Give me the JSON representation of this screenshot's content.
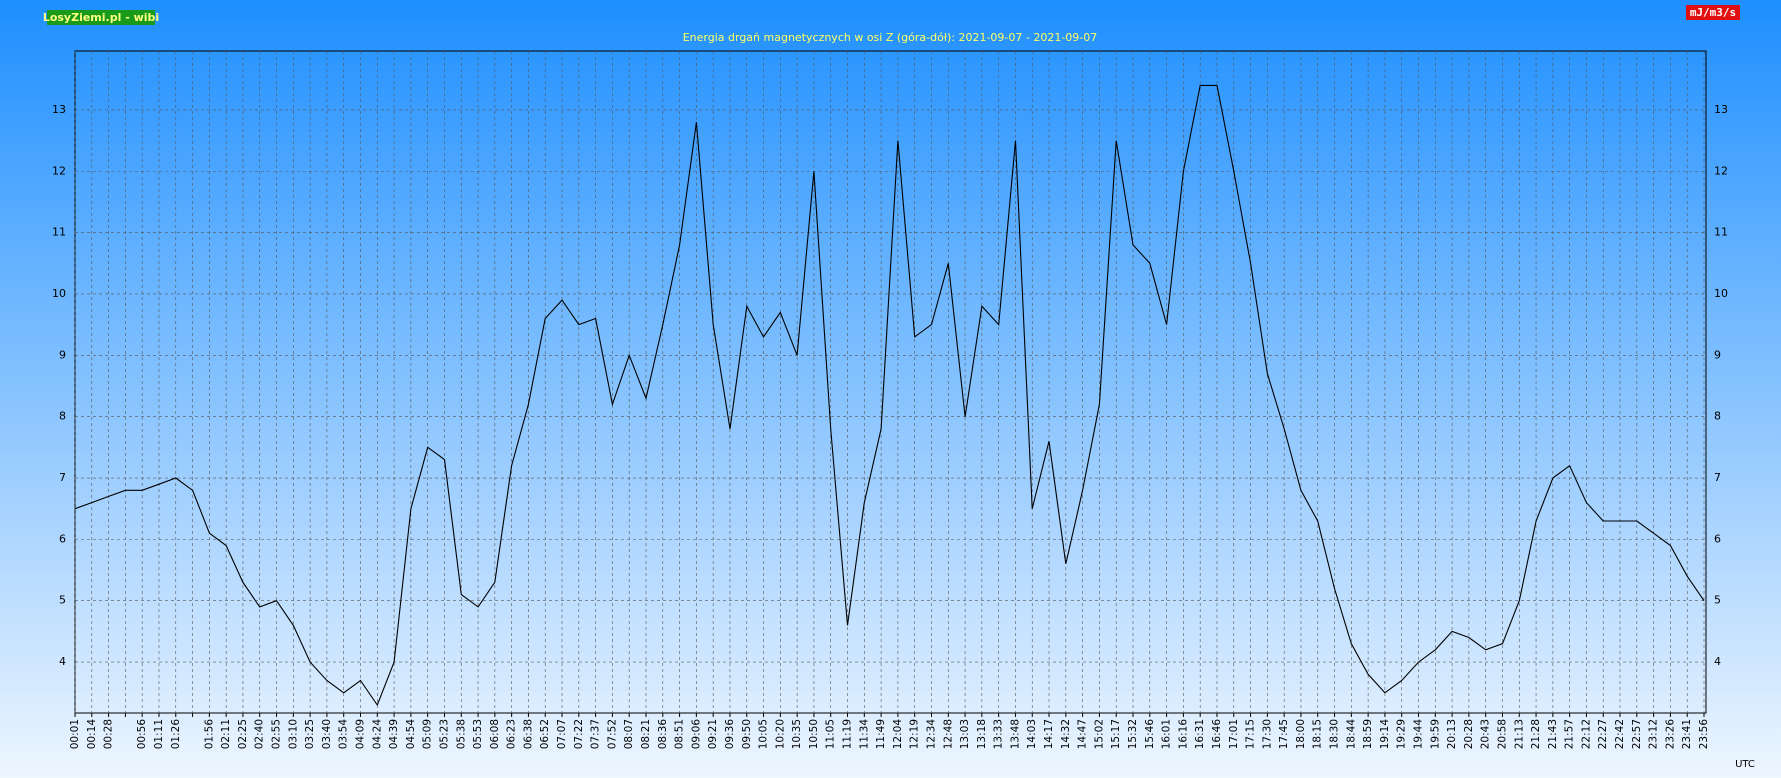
{
  "chart_data": {
    "type": "line",
    "title": "Energia drgań magnetycznych w osi Z (góra-dół): 2021-09-07 - 2021-09-07",
    "brand": "LosyZiemi.pl - wibi",
    "unit": "mJ/m3/s",
    "x_label": "UTC",
    "categories": [
      "00:01",
      "00:14",
      "00:28",
      null,
      "00:56",
      "01:11",
      "01:26",
      null,
      "01:56",
      "02:11",
      "02:25",
      "02:40",
      "02:55",
      "03:10",
      "03:25",
      "03:40",
      "03:54",
      "04:09",
      "04:24",
      "04:39",
      "04:54",
      "05:09",
      "05:23",
      "05:38",
      "05:53",
      "06:08",
      "06:23",
      "06:38",
      "06:52",
      "07:07",
      "07:22",
      "07:37",
      "07:52",
      "08:07",
      "08:21",
      "08:36",
      "08:51",
      "09:06",
      "09:21",
      "09:36",
      "09:50",
      "10:05",
      "10:20",
      "10:35",
      "10:50",
      "11:05",
      "11:19",
      "11:34",
      "11:49",
      "12:04",
      "12:19",
      "12:34",
      "12:48",
      "13:03",
      "13:18",
      "13:33",
      "13:48",
      "14:03",
      "14:17",
      "14:32",
      "14:47",
      "15:02",
      "15:17",
      "15:32",
      "15:46",
      "16:01",
      "16:16",
      "16:31",
      "16:46",
      "17:01",
      "17:15",
      "17:30",
      "17:45",
      "18:00",
      "18:15",
      "18:30",
      "18:44",
      "18:59",
      "19:14",
      "19:29",
      "19:44",
      "19:59",
      "20:13",
      "20:28",
      "20:43",
      "20:58",
      "21:13",
      "21:28",
      "21:43",
      "21:57",
      "22:12",
      "22:27",
      "22:42",
      "22:57",
      "23:12",
      "23:26",
      "23:41",
      "23:56"
    ],
    "values": [
      6.5,
      6.6,
      6.7,
      6.8,
      6.8,
      6.9,
      7.0,
      6.8,
      6.1,
      5.9,
      5.3,
      4.9,
      5.0,
      4.6,
      4.0,
      3.7,
      3.5,
      3.7,
      3.3,
      4.0,
      6.5,
      7.5,
      7.3,
      5.1,
      4.9,
      5.3,
      7.2,
      8.2,
      9.6,
      9.9,
      9.5,
      9.6,
      8.2,
      9.0,
      8.3,
      9.5,
      10.8,
      12.8,
      9.5,
      7.8,
      9.8,
      9.3,
      9.7,
      9.0,
      12.0,
      7.8,
      4.6,
      6.6,
      7.8,
      12.5,
      9.3,
      9.5,
      10.5,
      8.0,
      9.8,
      9.5,
      12.5,
      6.5,
      7.6,
      5.6,
      6.8,
      8.2,
      12.5,
      10.8,
      10.5,
      9.5,
      12.0,
      13.4,
      13.4,
      12.0,
      10.5,
      8.7,
      7.8,
      6.8,
      6.3,
      5.2,
      4.3,
      3.8,
      3.5,
      3.7,
      4.0,
      4.2,
      4.5,
      4.4,
      4.2,
      4.3,
      5.0,
      6.3,
      7.0,
      7.2,
      6.6,
      6.3,
      6.3,
      6.3,
      6.1,
      5.9,
      5.4,
      5.0
    ],
    "color": "#000000",
    "ylim": [
      3.17,
      13.96
    ],
    "yticks": [
      4,
      5,
      6,
      7,
      8,
      9,
      10,
      11,
      12,
      13
    ],
    "grid": true
  }
}
